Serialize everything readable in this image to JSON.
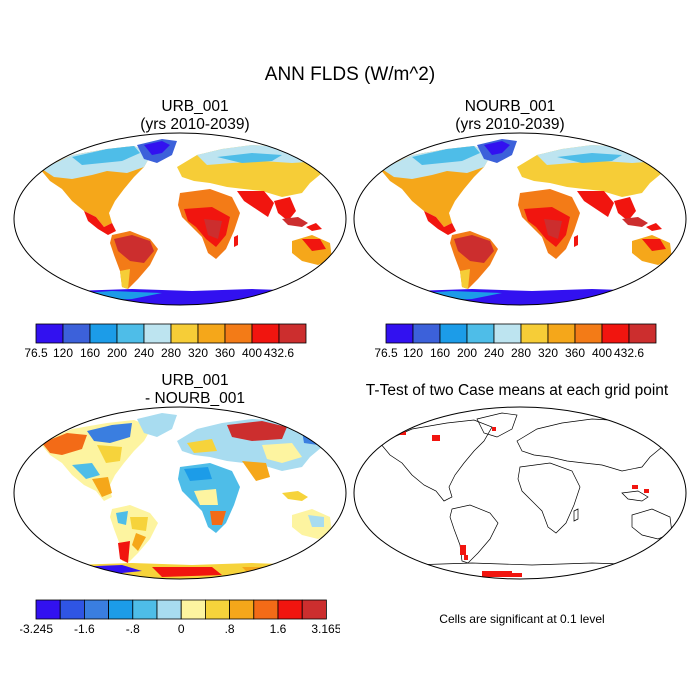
{
  "title": "ANN FLDS (W/m^2)",
  "panels": [
    {
      "title_line1": "URB_001",
      "title_line2": "(yrs 2010-2039)"
    },
    {
      "title_line1": "NOURB_001",
      "title_line2": "(yrs 2010-2039)"
    },
    {
      "title_line1": "URB_001",
      "title_line2": "- NOURB_001"
    },
    {
      "title_line1": "T-Test of two Case means at each grid point",
      "title_line2": ""
    }
  ],
  "colorbar_abs": {
    "labels": [
      "76.5",
      "120",
      "160",
      "200",
      "240",
      "280",
      "320",
      "360",
      "400",
      "432.6"
    ],
    "colors": [
      "#3211f0",
      "#3c61da",
      "#1c9ce8",
      "#4ebde8",
      "#bde4f0",
      "#f6cd37",
      "#f5a71a",
      "#f37b17",
      "#f1150f",
      "#cc2e2e"
    ]
  },
  "colorbar_diff": {
    "labels": [
      "-3.245",
      "-1.6",
      "-.8",
      "0",
      ".8",
      "1.6",
      "3.165"
    ],
    "colors": [
      "#3211f0",
      "#2f55e4",
      "#3a7ee0",
      "#1c9ce8",
      "#4ebde8",
      "#a8dcf0",
      "#fdf4a0",
      "#f6d33b",
      "#f5a71a",
      "#f36b17",
      "#f1150f",
      "#cc2e2e"
    ]
  },
  "footnote": "Cells are significant at 0.1 level"
}
